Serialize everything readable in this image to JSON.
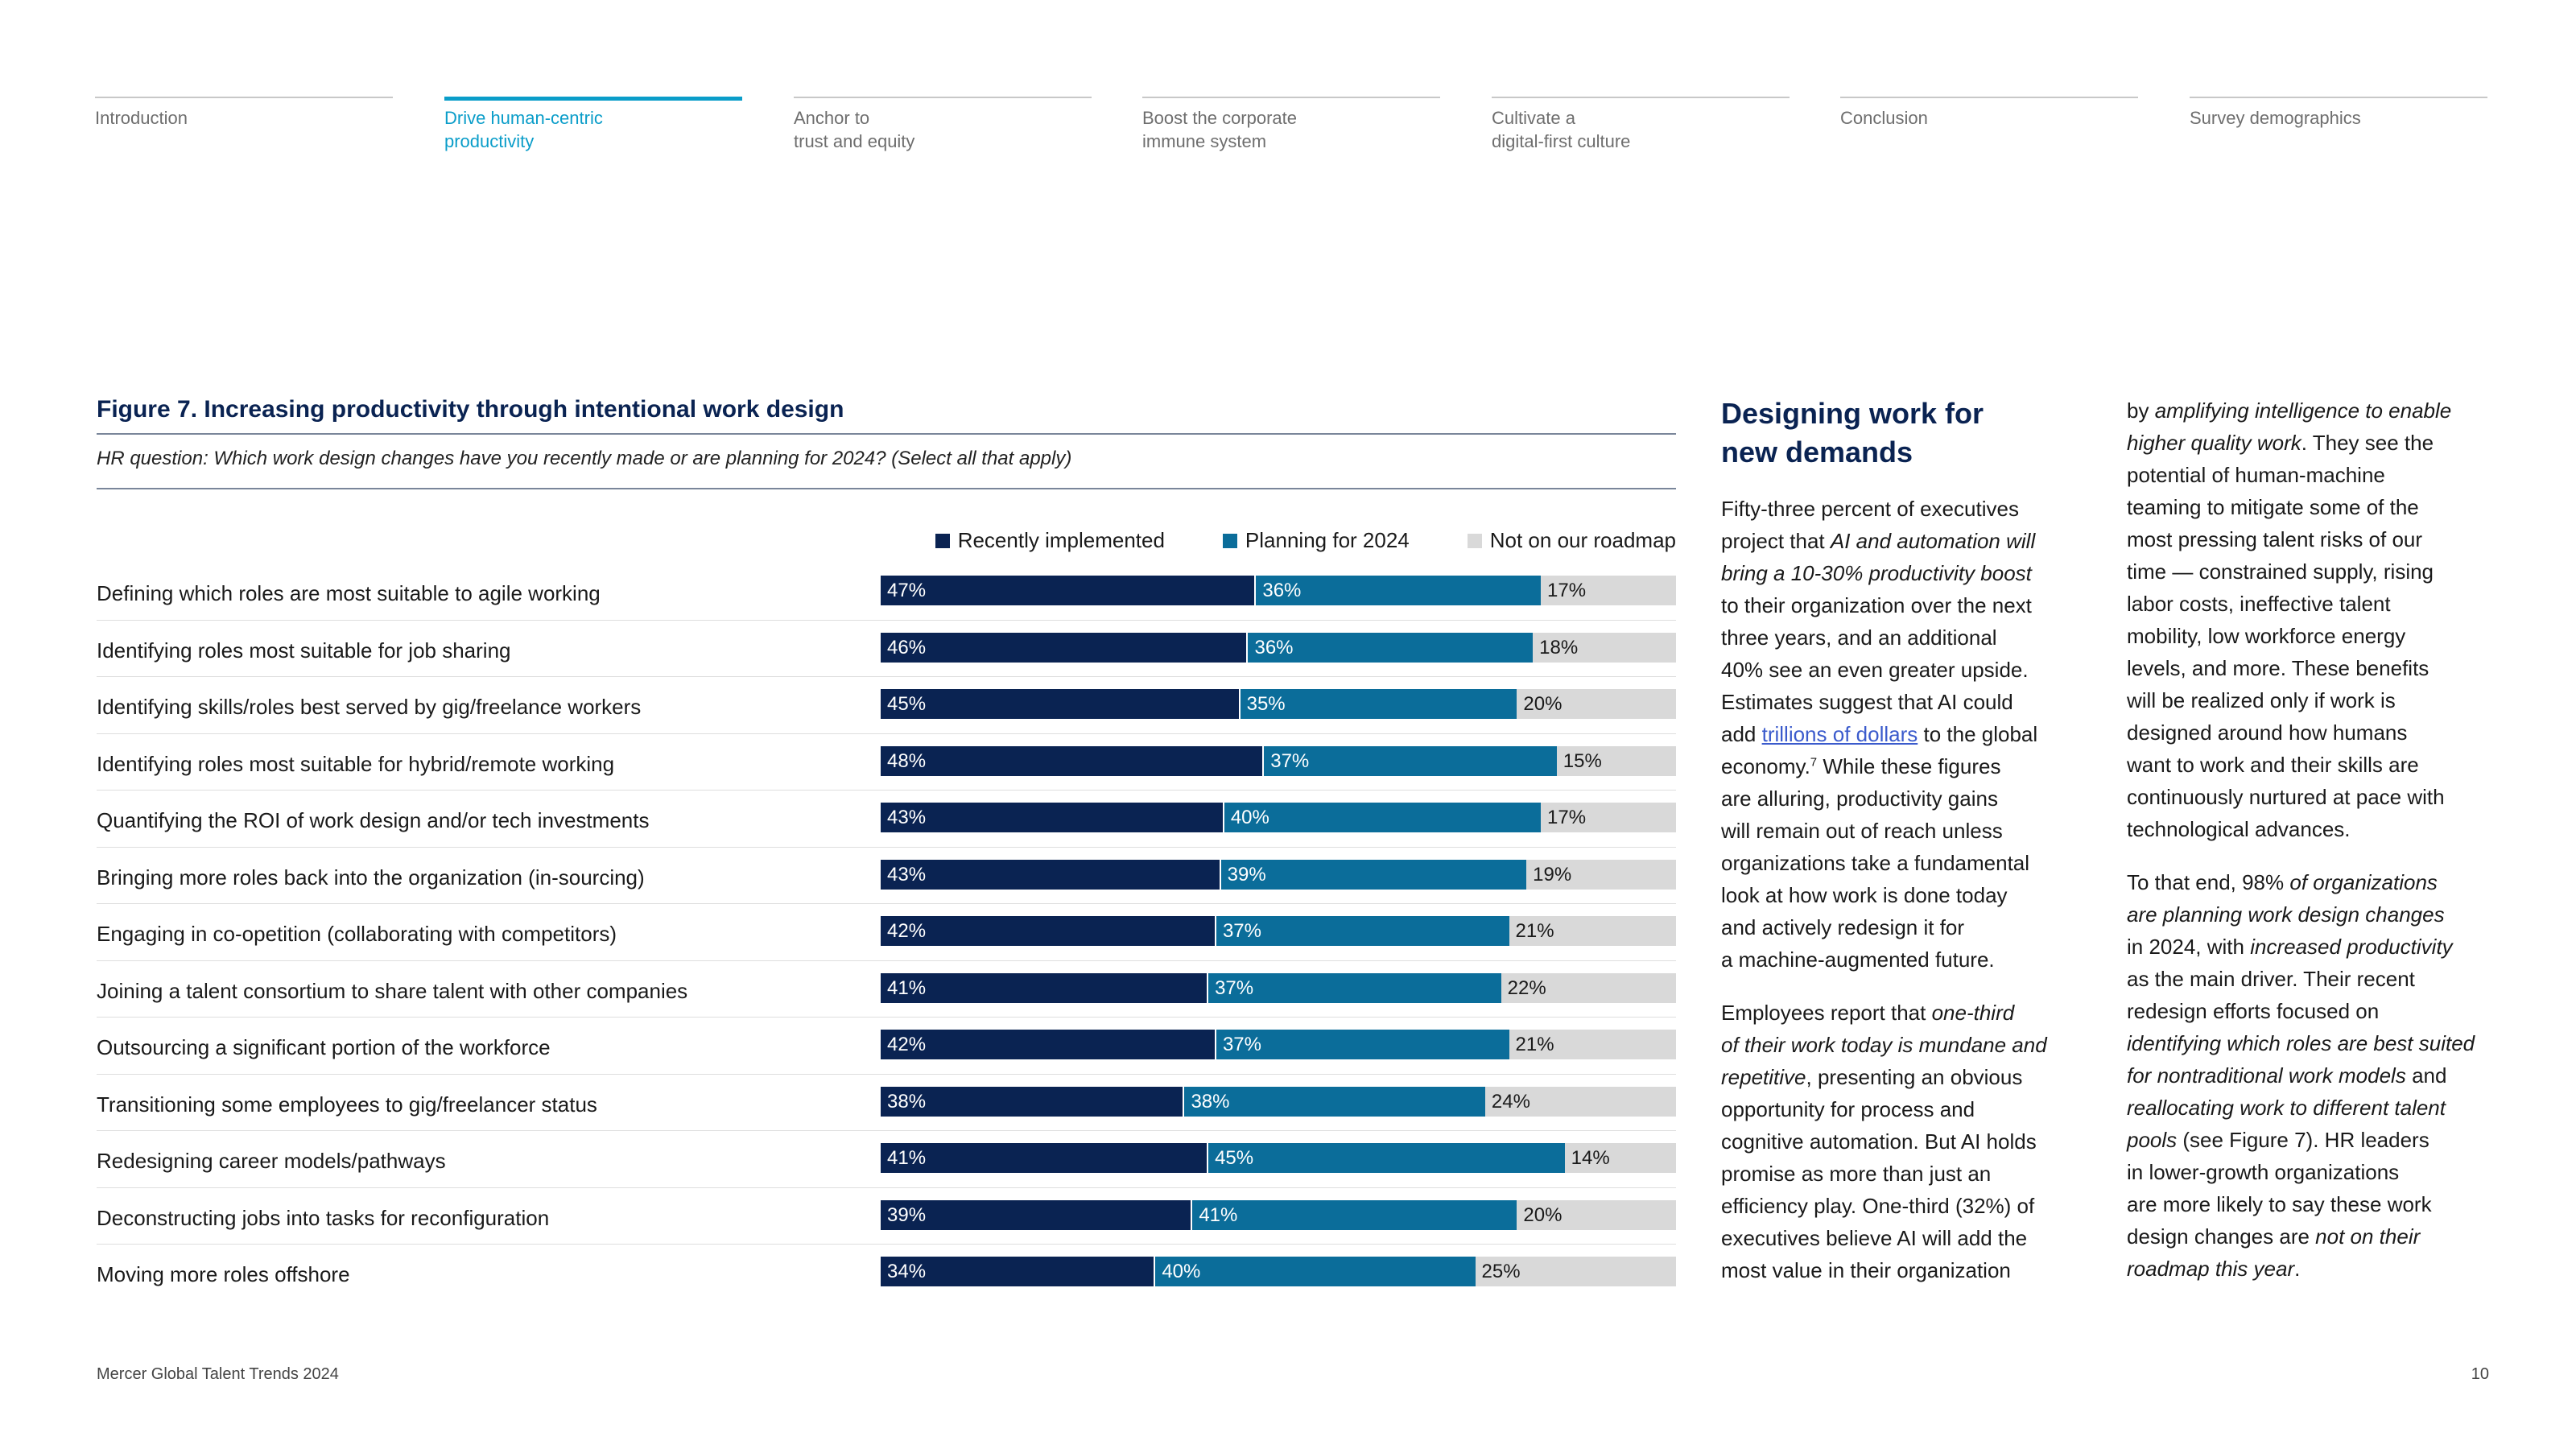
{
  "nav": [
    {
      "label": "Introduction"
    },
    {
      "label": "Drive human-centric\nproductivity",
      "active": true
    },
    {
      "label": "Anchor to\ntrust and equity"
    },
    {
      "label": "Boost the corporate\nimmune system"
    },
    {
      "label": "Cultivate a\ndigital-first culture"
    },
    {
      "label": "Conclusion"
    },
    {
      "label": "Survey demographics"
    }
  ],
  "figure": {
    "title": "Figure 7. Increasing productivity through intentional work design",
    "question": "HR question: Which work design changes have you recently made or are planning for 2024? (Select all that apply)"
  },
  "colors": {
    "recently_implemented": "#0a2352",
    "planning_2024": "#0b6d9a",
    "not_on_roadmap": "#d9d9d9",
    "accent": "#0a9dc9"
  },
  "chart_data": {
    "type": "bar",
    "orientation": "horizontal",
    "stacked": true,
    "unit": "%",
    "legend_position": "top-right",
    "categories": [
      "Defining which roles are most suitable to agile working",
      "Identifying roles most suitable for job sharing",
      "Identifying skills/roles best served by gig/freelance workers",
      "Identifying roles most suitable for hybrid/remote working",
      "Quantifying the ROI of work design and/or tech investments",
      "Bringing more roles back into the organization (in-sourcing)",
      "Engaging in co-opetition (collaborating with competitors)",
      "Joining a talent consortium to share talent with other companies",
      "Outsourcing a significant portion of the workforce",
      "Transitioning some employees to gig/freelancer status",
      "Redesigning career models/pathways",
      "Deconstructing jobs into tasks for reconfiguration",
      "Moving more roles offshore"
    ],
    "series": [
      {
        "name": "Recently implemented",
        "values": [
          47,
          46,
          45,
          48,
          43,
          43,
          42,
          41,
          42,
          38,
          41,
          39,
          34
        ]
      },
      {
        "name": "Planning for 2024",
        "values": [
          36,
          36,
          35,
          37,
          40,
          39,
          37,
          37,
          37,
          38,
          45,
          41,
          40
        ]
      },
      {
        "name": "Not on our roadmap",
        "values": [
          17,
          18,
          20,
          15,
          17,
          19,
          21,
          22,
          21,
          24,
          14,
          20,
          25
        ]
      }
    ]
  },
  "article": {
    "heading": "Designing work for\nnew demands",
    "col1": [
      [
        {
          "t": "Fifty-three percent of executives\nproject that "
        },
        {
          "t": "AI and automation will\nbring a 10-30% productivity boost",
          "i": true
        },
        {
          "t": "\nto their organization over the next\nthree years, and an additional\n40% see an even greater upside.\nEstimates suggest that AI could\nadd "
        },
        {
          "t": "trillions of dollars",
          "link": true
        },
        {
          "t": " to the global\neconomy."
        },
        {
          "t": "7",
          "sup": true
        },
        {
          "t": " While these figures\nare alluring, productivity gains\nwill remain out of reach unless\norganizations take a fundamental\nlook at how work is done today\nand actively redesign it for\na machine-augmented future."
        }
      ],
      [
        {
          "t": "Employees report that "
        },
        {
          "t": "one-third\nof their work today is mundane and\nrepetitive",
          "i": true
        },
        {
          "t": ", presenting an obvious\nopportunity for process and\ncognitive automation. But AI holds\npromise as more than just an\nefficiency play. One-third (32%) of\nexecutives believe AI will add the\nmost value in their organization"
        }
      ]
    ],
    "col2": [
      [
        {
          "t": "by "
        },
        {
          "t": "amplifying intelligence to enable\nhigher quality work",
          "i": true
        },
        {
          "t": ". They see the\npotential of human-machine\nteaming to mitigate some of the\nmost pressing talent risks of our\ntime — constrained supply, rising\nlabor costs, ineffective talent\nmobility, low workforce energy\nlevels, and more. These benefits\nwill be realized only if work is\ndesigned around how humans\nwant to work and their skills are\ncontinuously nurtured at pace with\ntechnological advances."
        }
      ],
      [
        {
          "t": "To that end, 98% "
        },
        {
          "t": "of organizations\nare planning work design changes",
          "i": true
        },
        {
          "t": "\nin 2024, with "
        },
        {
          "t": "increased productivity",
          "i": true
        },
        {
          "t": "\nas the main driver. Their recent\nredesign efforts focused on\n"
        },
        {
          "t": "identifying which roles are best suited\nfor nontraditional work models",
          "i": true
        },
        {
          "t": " and\n"
        },
        {
          "t": "reallocating work to different talent\npools",
          "i": true
        },
        {
          "t": " (see Figure 7). HR leaders\nin lower-growth organizations\nare more likely to say these work\ndesign changes are "
        },
        {
          "t": "not on their\nroadmap this year",
          "i": true
        },
        {
          "t": "."
        }
      ]
    ]
  },
  "footer": {
    "source": "Mercer Global Talent Trends 2024",
    "page_number": "10"
  }
}
